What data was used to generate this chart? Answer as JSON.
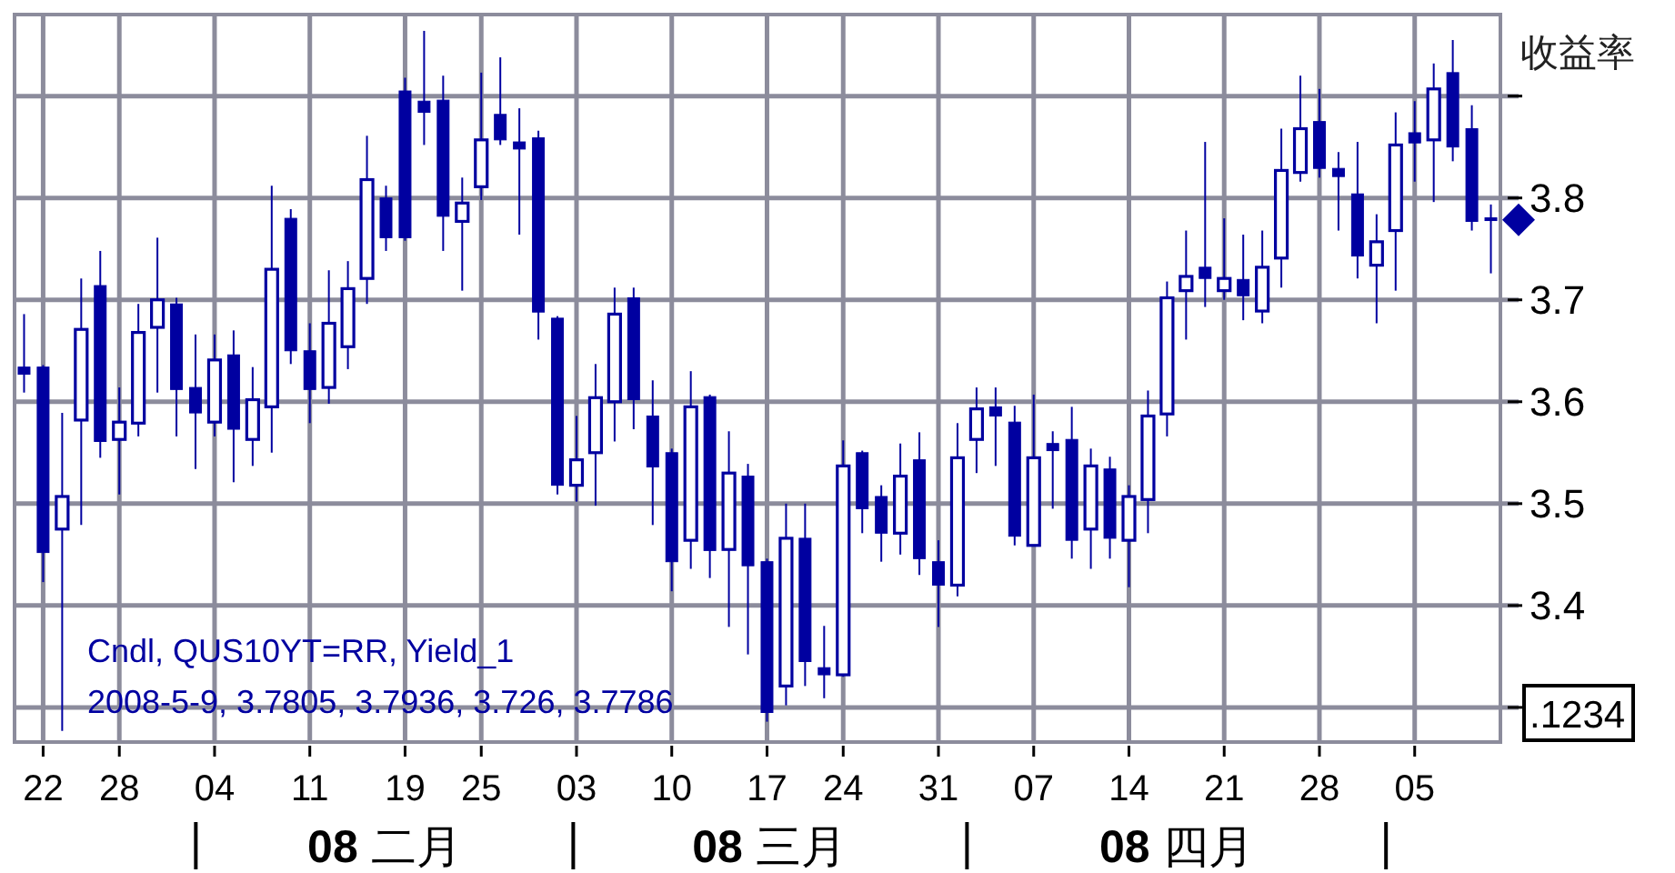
{
  "chart_data": {
    "type": "candlestick",
    "ylabel": "收益率",
    "color": "#0000a0",
    "categories": [
      null,
      "22",
      null,
      null,
      null,
      "28",
      null,
      null,
      null,
      null,
      "04",
      null,
      null,
      null,
      null,
      "11",
      null,
      null,
      null,
      null,
      "19",
      null,
      null,
      null,
      "25",
      null,
      null,
      null,
      null,
      "03",
      null,
      null,
      null,
      null,
      "10",
      null,
      null,
      null,
      null,
      "17",
      null,
      null,
      null,
      "24",
      null,
      null,
      null,
      null,
      "31",
      null,
      null,
      null,
      null,
      "07",
      null,
      null,
      null,
      null,
      "14",
      null,
      null,
      null,
      null,
      "21",
      null,
      null,
      null,
      null,
      "28",
      null,
      null,
      null,
      null,
      "05",
      null,
      null,
      null,
      null
    ],
    "ohlc": [
      [
        3.634,
        3.686,
        3.609,
        3.627
      ],
      [
        3.634,
        3.636,
        3.423,
        3.452
      ],
      [
        3.475,
        3.589,
        3.277,
        3.507
      ],
      [
        3.582,
        3.721,
        3.479,
        3.671
      ],
      [
        3.714,
        3.748,
        3.545,
        3.561
      ],
      [
        3.563,
        3.614,
        3.509,
        3.58
      ],
      [
        3.579,
        3.696,
        3.566,
        3.668
      ],
      [
        3.673,
        3.761,
        3.609,
        3.7
      ],
      [
        3.696,
        3.702,
        3.566,
        3.612
      ],
      [
        3.614,
        3.666,
        3.534,
        3.589
      ],
      [
        3.58,
        3.666,
        3.566,
        3.641
      ],
      [
        3.646,
        3.67,
        3.521,
        3.573
      ],
      [
        3.563,
        3.634,
        3.537,
        3.602
      ],
      [
        3.595,
        3.812,
        3.55,
        3.73
      ],
      [
        3.78,
        3.789,
        3.637,
        3.65
      ],
      [
        3.65,
        3.677,
        3.579,
        3.612
      ],
      [
        3.614,
        3.729,
        3.598,
        3.677
      ],
      [
        3.654,
        3.738,
        3.632,
        3.711
      ],
      [
        3.721,
        3.861,
        3.696,
        3.818
      ],
      [
        3.8,
        3.812,
        3.748,
        3.761
      ],
      [
        3.905,
        3.918,
        3.758,
        3.761
      ],
      [
        3.895,
        3.964,
        3.852,
        3.884
      ],
      [
        3.896,
        3.92,
        3.748,
        3.782
      ],
      [
        3.777,
        3.82,
        3.709,
        3.795
      ],
      [
        3.811,
        3.923,
        3.798,
        3.857
      ],
      [
        3.882,
        3.938,
        3.852,
        3.857
      ],
      [
        3.855,
        3.888,
        3.764,
        3.848
      ],
      [
        3.859,
        3.866,
        3.661,
        3.688
      ],
      [
        3.682,
        3.684,
        3.509,
        3.518
      ],
      [
        3.518,
        3.586,
        3.502,
        3.543
      ],
      [
        3.55,
        3.637,
        3.498,
        3.604
      ],
      [
        3.6,
        3.712,
        3.561,
        3.686
      ],
      [
        3.702,
        3.712,
        3.573,
        3.602
      ],
      [
        3.586,
        3.621,
        3.479,
        3.536
      ],
      [
        3.55,
        3.554,
        3.414,
        3.443
      ],
      [
        3.464,
        3.63,
        3.436,
        3.595
      ],
      [
        3.605,
        3.607,
        3.427,
        3.454
      ],
      [
        3.455,
        3.571,
        3.379,
        3.53
      ],
      [
        3.527,
        3.539,
        3.352,
        3.439
      ],
      [
        3.443,
        3.446,
        3.286,
        3.295
      ],
      [
        3.321,
        3.5,
        3.302,
        3.466
      ],
      [
        3.466,
        3.5,
        3.321,
        3.345
      ],
      [
        3.339,
        3.38,
        3.309,
        3.332
      ],
      [
        3.332,
        3.562,
        3.33,
        3.537
      ],
      [
        3.55,
        3.552,
        3.471,
        3.495
      ],
      [
        3.507,
        3.518,
        3.443,
        3.471
      ],
      [
        3.471,
        3.559,
        3.45,
        3.527
      ],
      [
        3.543,
        3.57,
        3.43,
        3.446
      ],
      [
        3.443,
        3.464,
        3.379,
        3.42
      ],
      [
        3.42,
        3.579,
        3.409,
        3.545
      ],
      [
        3.563,
        3.614,
        3.53,
        3.593
      ],
      [
        3.595,
        3.614,
        3.537,
        3.586
      ],
      [
        3.58,
        3.596,
        3.459,
        3.468
      ],
      [
        3.459,
        3.607,
        3.459,
        3.545
      ],
      [
        3.559,
        3.571,
        3.495,
        3.552
      ],
      [
        3.563,
        3.595,
        3.446,
        3.464
      ],
      [
        3.475,
        3.554,
        3.436,
        3.537
      ],
      [
        3.534,
        3.546,
        3.446,
        3.466
      ],
      [
        3.464,
        3.518,
        3.418,
        3.507
      ],
      [
        3.504,
        3.611,
        3.471,
        3.586
      ],
      [
        3.588,
        3.718,
        3.566,
        3.702
      ],
      [
        3.709,
        3.768,
        3.661,
        3.723
      ],
      [
        3.732,
        3.855,
        3.693,
        3.721
      ],
      [
        3.709,
        3.78,
        3.7,
        3.721
      ],
      [
        3.72,
        3.764,
        3.68,
        3.704
      ],
      [
        3.689,
        3.768,
        3.677,
        3.732
      ],
      [
        3.741,
        3.868,
        3.712,
        3.827
      ],
      [
        3.825,
        3.92,
        3.816,
        3.868
      ],
      [
        3.875,
        3.907,
        3.82,
        3.829
      ],
      [
        3.829,
        3.845,
        3.768,
        3.821
      ],
      [
        3.804,
        3.855,
        3.721,
        3.743
      ],
      [
        3.734,
        3.784,
        3.677,
        3.757
      ],
      [
        3.768,
        3.884,
        3.709,
        3.852
      ],
      [
        3.864,
        3.895,
        3.816,
        3.854
      ],
      [
        3.857,
        3.932,
        3.796,
        3.907
      ],
      [
        3.923,
        3.955,
        3.836,
        3.85
      ],
      [
        3.868,
        3.891,
        3.768,
        3.777
      ],
      [
        3.7805,
        3.7936,
        3.726,
        3.7786
      ]
    ],
    "ylim": [
      3.266,
      3.98
    ],
    "yticks": [
      {
        "value": 3.3,
        "label": null
      },
      3.4,
      3.5,
      3.6,
      3.7,
      3.8,
      {
        "value": 3.9,
        "label": null
      }
    ],
    "grid": true,
    "annotations": [
      "Cndl, QUS10YT=RR, Yield_1",
      "2008-5-9, 3.7805, 3.7936, 3.726, 3.7786",
      "08 二月",
      "08 三月",
      "08 四月",
      ".1234"
    ]
  }
}
